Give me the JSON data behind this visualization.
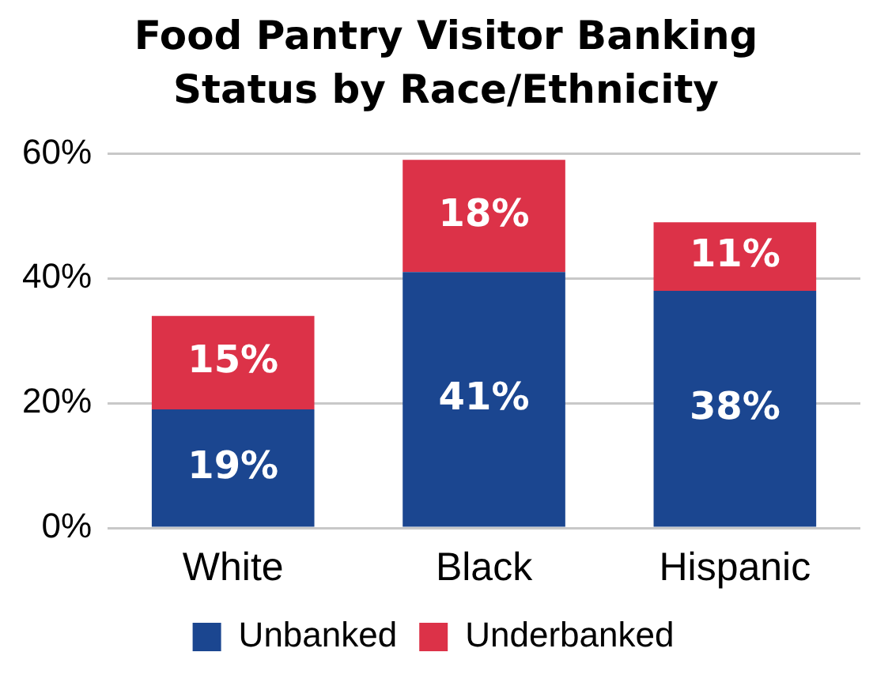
{
  "chart_data": {
    "type": "bar",
    "title": "Food Pantry Visitor Banking Status by Race/Ethnicity",
    "categories": [
      "White",
      "Black",
      "Hispanic"
    ],
    "stacked": true,
    "series": [
      {
        "name": "Unbanked",
        "color": "#1b4690",
        "values": [
          19,
          41,
          38
        ],
        "value_labels": [
          "19%",
          "41%",
          "38%"
        ]
      },
      {
        "name": "Underbanked",
        "color": "#dc3248",
        "values": [
          15,
          18,
          11
        ],
        "value_labels": [
          "15%",
          "18%",
          "11%"
        ]
      }
    ],
    "ylim": [
      0,
      60
    ],
    "yticks": [
      {
        "value": 0,
        "label": "0%"
      },
      {
        "value": 20,
        "label": "20%"
      },
      {
        "value": 40,
        "label": "40%"
      },
      {
        "value": 60,
        "label": "60%"
      }
    ],
    "grid": "y",
    "legend": "bottom"
  }
}
